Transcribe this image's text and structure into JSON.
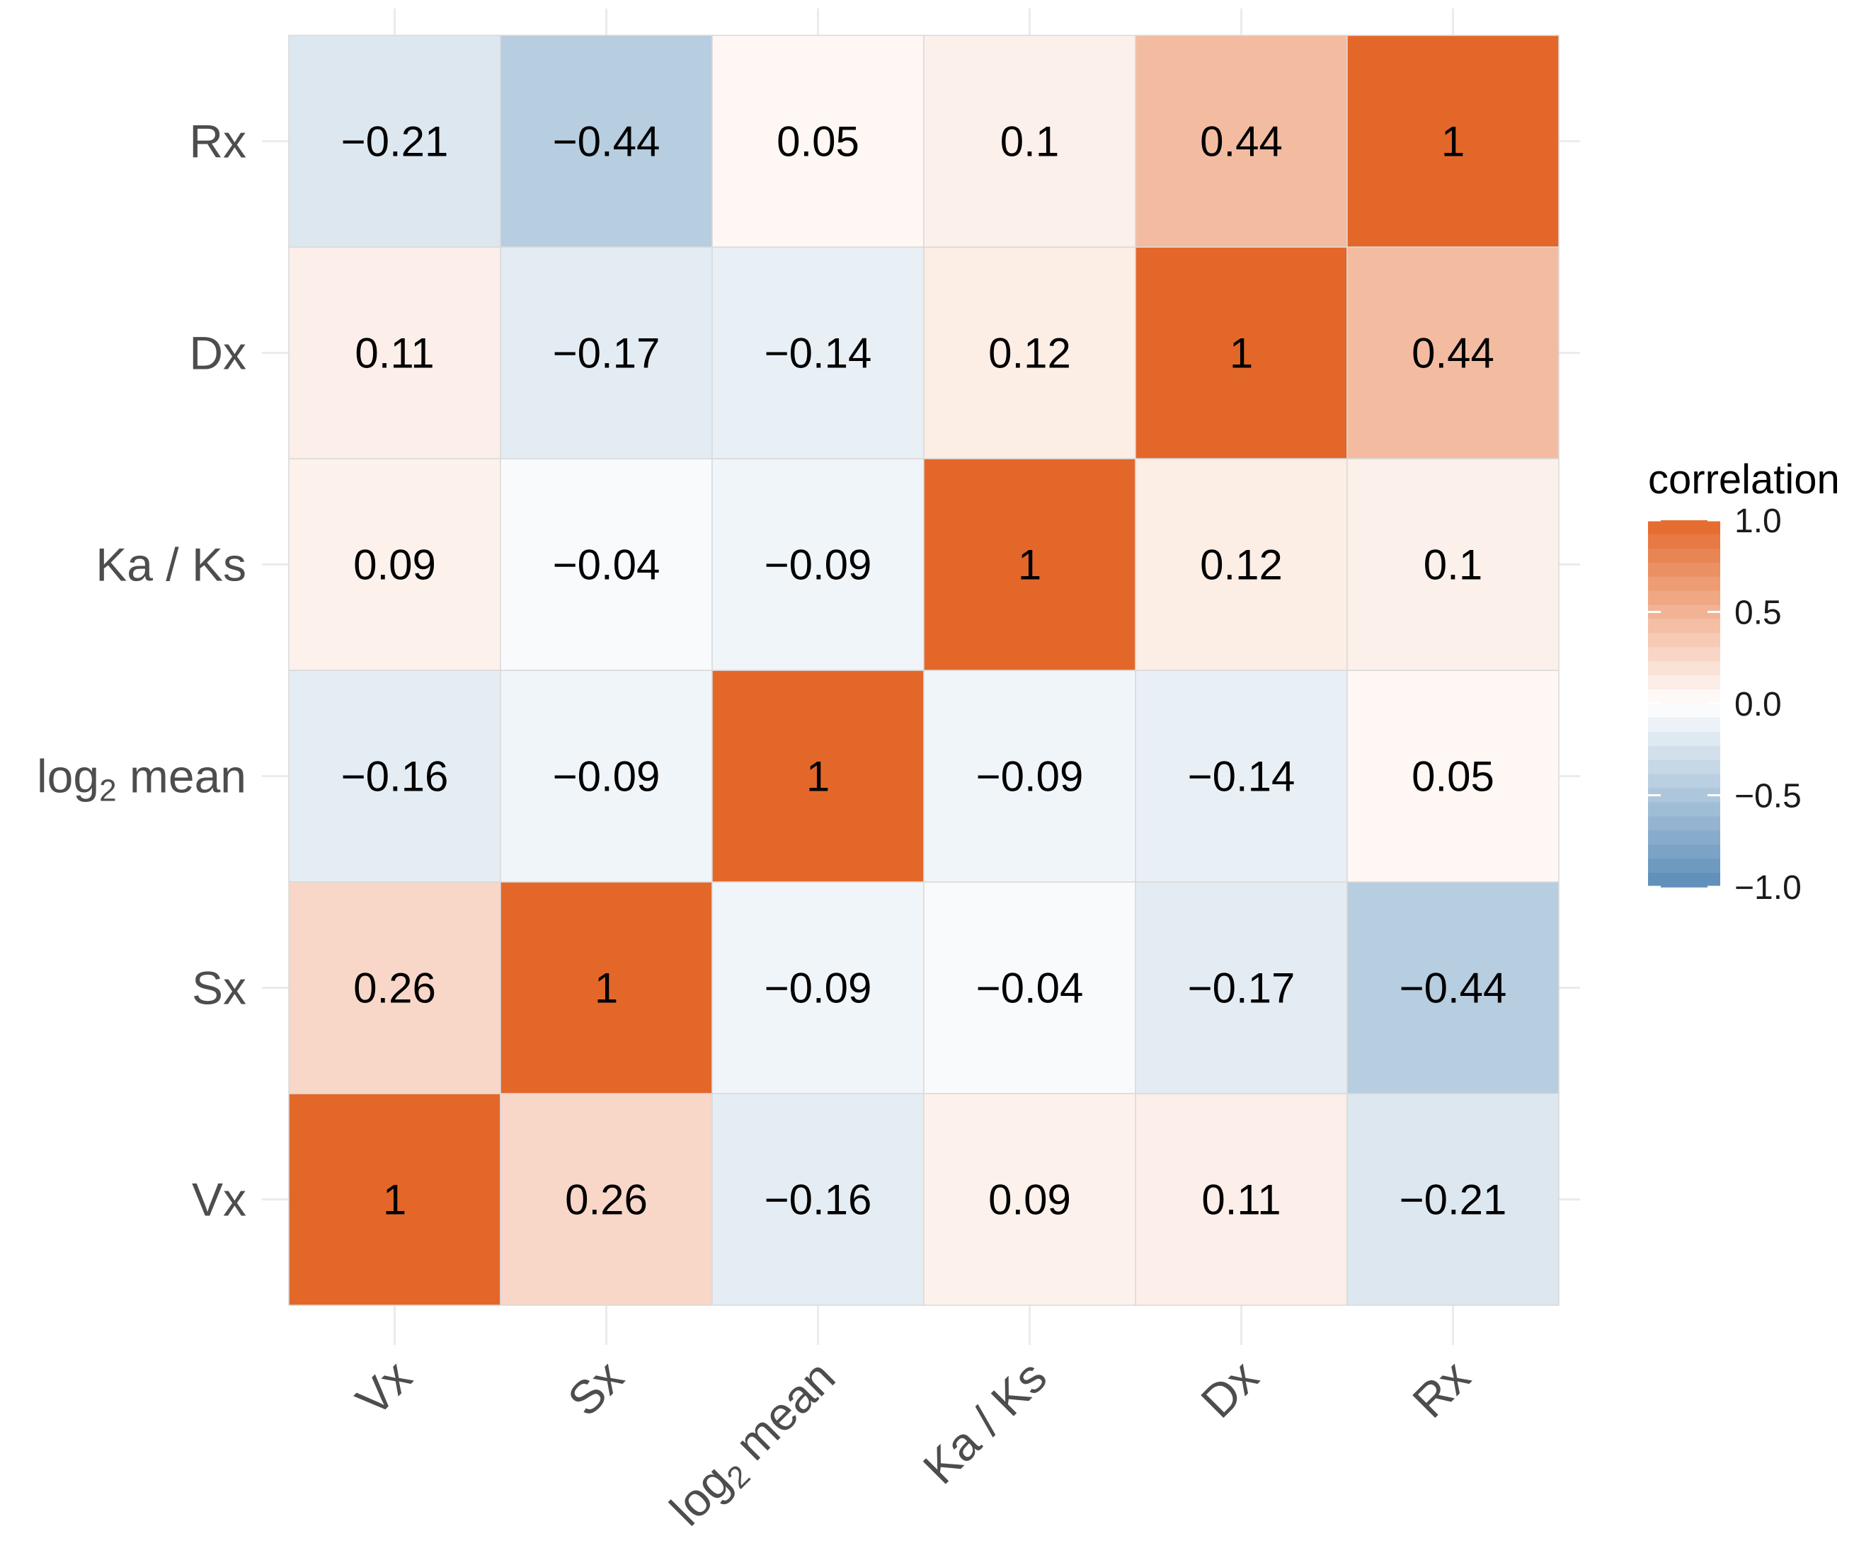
{
  "chart_data": {
    "type": "heatmap",
    "x_categories": [
      "Vx",
      "Sx",
      "log2 mean",
      "Ka / Ks",
      "Dx",
      "Rx"
    ],
    "y_categories": [
      "Vx",
      "Sx",
      "log2 mean",
      "Ka / Ks",
      "Dx",
      "Rx"
    ],
    "x_tick_labels": [
      {
        "main": "Vx",
        "sub": ""
      },
      {
        "main": "Sx",
        "sub": ""
      },
      {
        "main": "log",
        "sub": "2",
        "rest": " mean"
      },
      {
        "main": "Ka / Ks",
        "sub": ""
      },
      {
        "main": "Dx",
        "sub": ""
      },
      {
        "main": "Rx",
        "sub": ""
      }
    ],
    "matrix": [
      [
        1,
        0.26,
        -0.16,
        0.09,
        0.11,
        -0.21
      ],
      [
        0.26,
        1,
        -0.09,
        -0.04,
        -0.17,
        -0.44
      ],
      [
        -0.16,
        -0.09,
        1,
        -0.09,
        -0.14,
        0.05
      ],
      [
        0.09,
        -0.04,
        -0.09,
        1,
        0.12,
        0.1
      ],
      [
        0.11,
        -0.17,
        -0.14,
        0.12,
        1,
        0.44
      ],
      [
        -0.21,
        -0.44,
        0.05,
        0.1,
        0.44,
        1
      ]
    ],
    "cell_labels": [
      [
        "1",
        "0.26",
        "−0.16",
        "0.09",
        "0.11",
        "−0.21"
      ],
      [
        "0.26",
        "1",
        "−0.09",
        "−0.04",
        "−0.17",
        "−0.44"
      ],
      [
        "−0.16",
        "−0.09",
        "1",
        "−0.09",
        "−0.14",
        "0.05"
      ],
      [
        "0.09",
        "−0.04",
        "−0.09",
        "1",
        "0.12",
        "0.1"
      ],
      [
        "0.11",
        "−0.17",
        "−0.14",
        "0.12",
        "1",
        "0.44"
      ],
      [
        "−0.21",
        "−0.44",
        "0.05",
        "0.1",
        "0.44",
        "1"
      ]
    ],
    "color_scale": {
      "low": "#5b8db8",
      "mid": "#ffffff",
      "high": "#e4672a",
      "min": -1,
      "max": 1
    },
    "legend": {
      "title": "correlation",
      "position": "right",
      "ticks": [
        1.0,
        0.5,
        0.0,
        -0.5,
        -1.0
      ],
      "tick_labels": [
        "1.0",
        "0.5",
        "0.0",
        "−0.5",
        "−1.0"
      ]
    },
    "grid": true
  }
}
